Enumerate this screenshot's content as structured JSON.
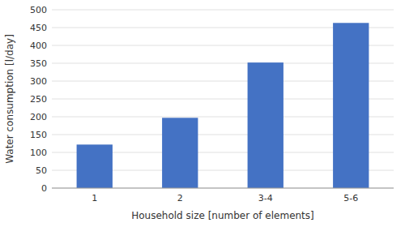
{
  "chart_data": {
    "type": "bar",
    "categories": [
      "1",
      "2",
      "3-4",
      "5-6"
    ],
    "values": [
      122,
      197,
      352,
      463
    ],
    "color": "#4472C4",
    "xlabel": "Household size [number of elements]",
    "ylabel": "Water consumption [l/day]",
    "ylim": [
      0,
      500
    ],
    "yticks": [
      0,
      50,
      100,
      150,
      200,
      250,
      300,
      350,
      400,
      450,
      500
    ],
    "grid": true
  }
}
